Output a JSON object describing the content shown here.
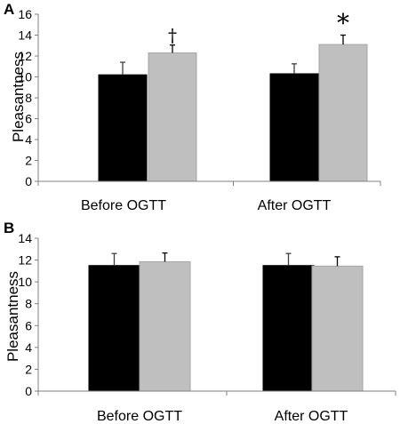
{
  "colors": {
    "series_black": "#000000",
    "series_gray": "#bfbfbf",
    "gray_stroke": "#a6a6a6",
    "axis": "#808080"
  },
  "chart_data": [
    {
      "panel": "A",
      "type": "bar",
      "categories": [
        "Before OGTT",
        "After OGTT"
      ],
      "ylabel": "Pleasantness",
      "ylim": [
        0,
        16
      ],
      "yticks": [
        0,
        2,
        4,
        6,
        8,
        10,
        12,
        14,
        16
      ],
      "grid": false,
      "series": [
        {
          "color": "#000000",
          "values": [
            10.2,
            10.3
          ],
          "errors": [
            1.2,
            0.95
          ]
        },
        {
          "color": "#bfbfbf",
          "values": [
            12.3,
            13.1
          ],
          "errors": [
            0.75,
            0.9
          ]
        }
      ],
      "annotations": [
        {
          "category": "Before OGTT",
          "text": "†"
        },
        {
          "category": "After OGTT",
          "text": "*"
        }
      ]
    },
    {
      "panel": "B",
      "type": "bar",
      "categories": [
        "Before OGTT",
        "After OGTT"
      ],
      "ylabel": "Pleasantness",
      "ylim": [
        0,
        14
      ],
      "yticks": [
        0,
        2,
        4,
        6,
        8,
        10,
        12,
        14
      ],
      "grid": false,
      "series": [
        {
          "color": "#000000",
          "values": [
            11.5,
            11.5
          ],
          "errors": [
            1.1,
            1.1
          ]
        },
        {
          "color": "#bfbfbf",
          "values": [
            11.85,
            11.45
          ],
          "errors": [
            0.8,
            0.85
          ]
        }
      ],
      "annotations": []
    }
  ]
}
